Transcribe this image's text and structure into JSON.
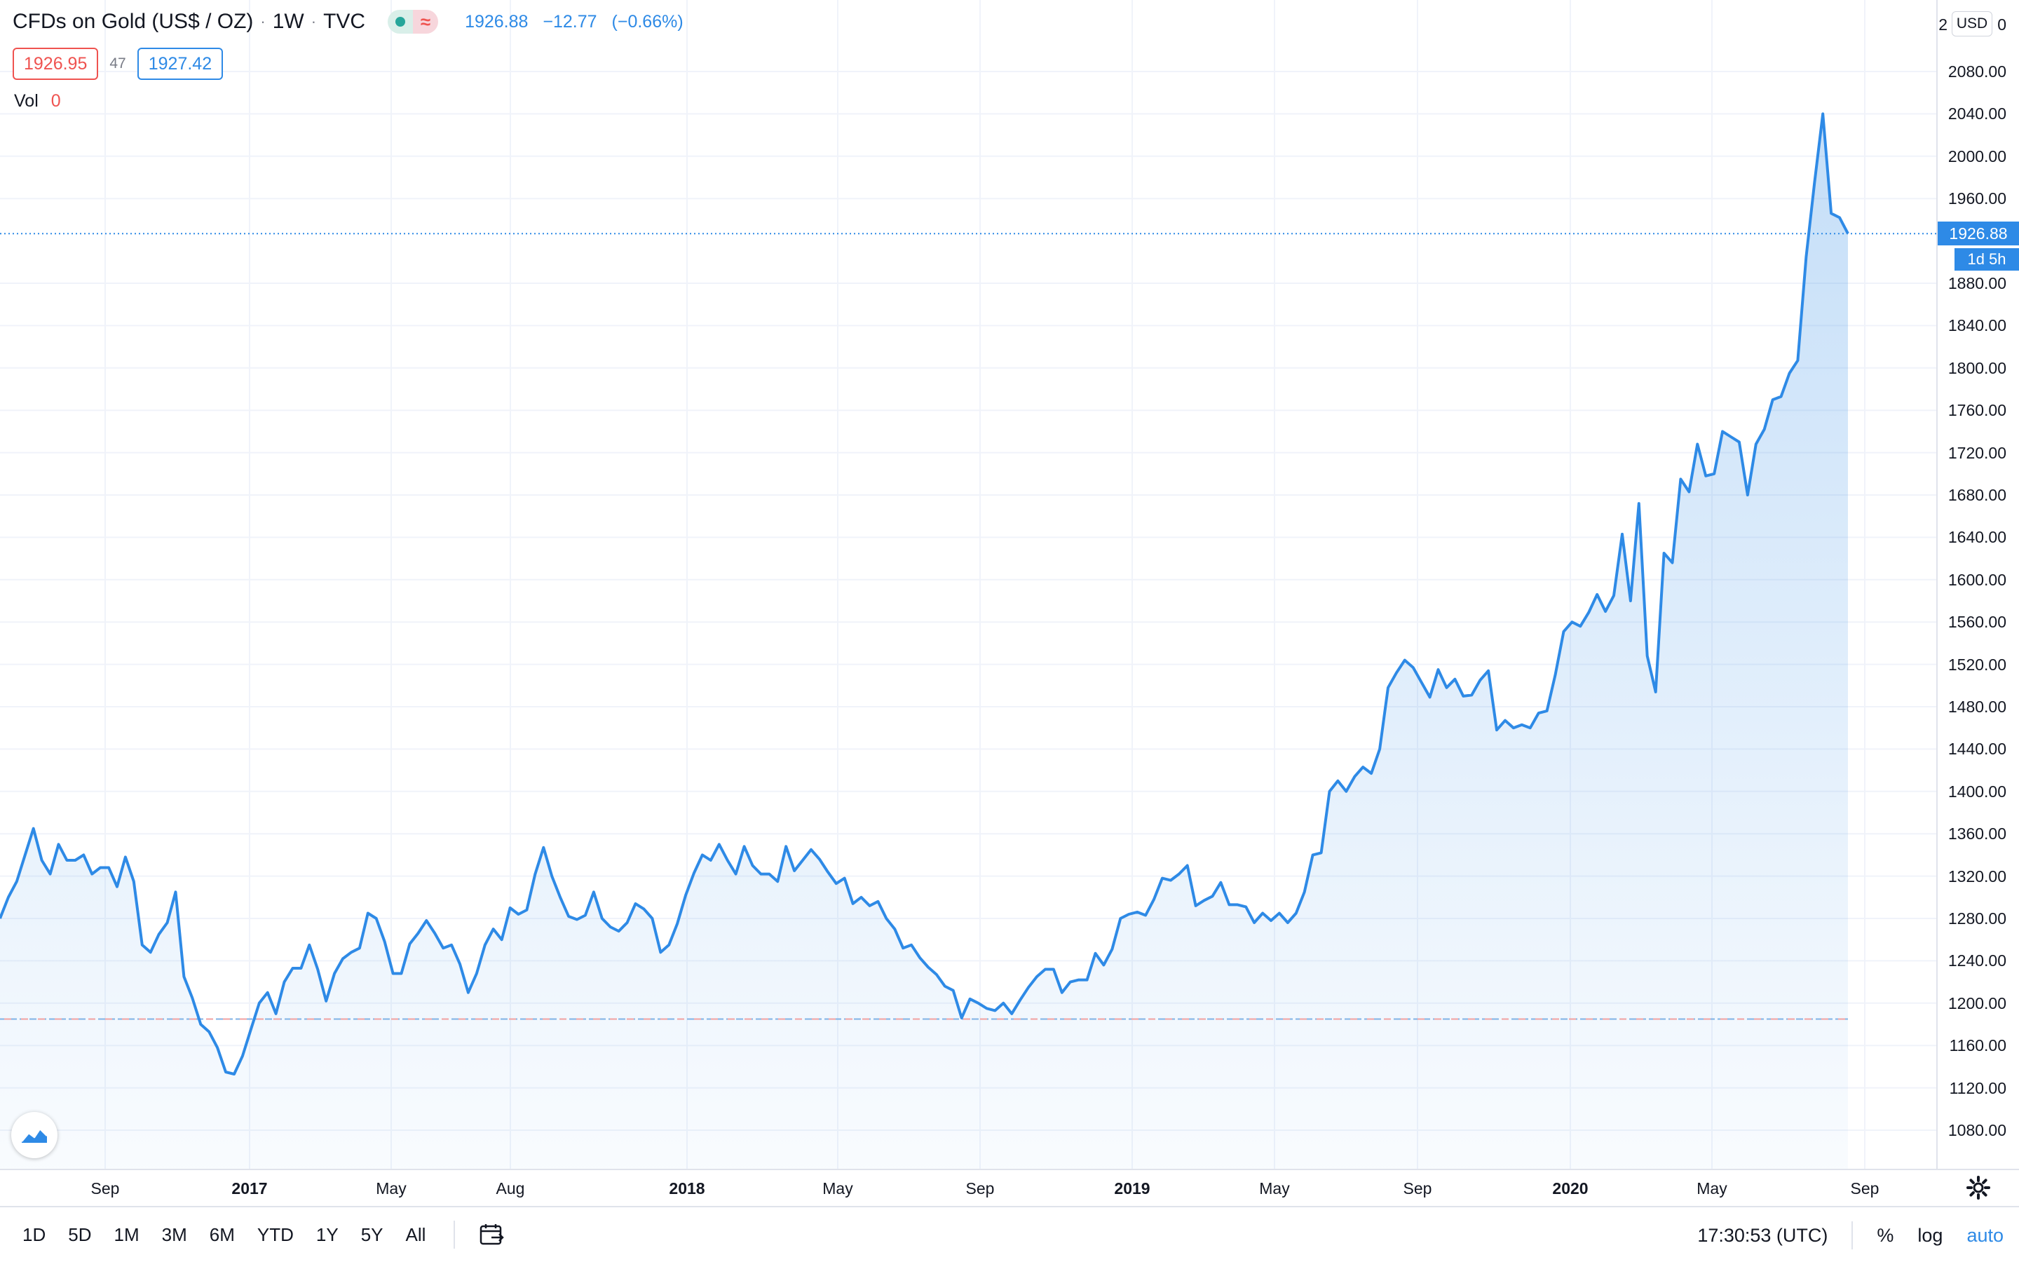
{
  "legend": {
    "symbol_name": "CFDs on Gold (US$ / OZ)",
    "interval": "1W",
    "exchange": "TVC",
    "last_price": "1926.88",
    "change": "−12.77",
    "change_pct": "(−0.66%)",
    "bid": "1926.95",
    "spread": "47",
    "ask": "1927.42",
    "vol_label": "Vol",
    "vol_value": "0"
  },
  "price_axis": {
    "currency": "USD",
    "labels": [
      "2080.00",
      "2040.00",
      "2000.00",
      "1960.00",
      "1880.00",
      "1840.00",
      "1800.00",
      "1760.00",
      "1720.00",
      "1680.00",
      "1640.00",
      "1600.00",
      "1560.00",
      "1520.00",
      "1480.00",
      "1440.00",
      "1400.00",
      "1360.00",
      "1320.00",
      "1280.00",
      "1240.00",
      "1200.00",
      "1160.00",
      "1120.00",
      "1080.00"
    ],
    "top_partial_left": "2",
    "top_partial_right": "0",
    "price_tag": "1926.88",
    "countdown": "1d 5h"
  },
  "time_axis": {
    "labels": [
      {
        "text": "Sep",
        "year": false
      },
      {
        "text": "2017",
        "year": true
      },
      {
        "text": "May",
        "year": false
      },
      {
        "text": "Aug",
        "year": false
      },
      {
        "text": "2018",
        "year": true
      },
      {
        "text": "May",
        "year": false
      },
      {
        "text": "Sep",
        "year": false
      },
      {
        "text": "2019",
        "year": true
      },
      {
        "text": "May",
        "year": false
      },
      {
        "text": "Sep",
        "year": false
      },
      {
        "text": "2020",
        "year": true
      },
      {
        "text": "May",
        "year": false
      },
      {
        "text": "Sep",
        "year": false
      }
    ]
  },
  "toolbar": {
    "ranges": [
      "1D",
      "5D",
      "1M",
      "3M",
      "6M",
      "YTD",
      "1Y",
      "5Y",
      "All"
    ],
    "clock": "17:30:53 (UTC)",
    "percent": "%",
    "log": "log",
    "auto": "auto"
  },
  "colors": {
    "line": "#2e8ae6",
    "down": "#ef5350",
    "grid": "#f0f3fa"
  },
  "chart_data": {
    "type": "area",
    "title": "CFDs on Gold (US$ / OZ)",
    "interval": "1W",
    "ylabel": "USD",
    "ylim": [
      1050,
      2110
    ],
    "x_start": "2016-07",
    "x_end": "2020-08",
    "last_value": 1926.88,
    "reference_line": 1185,
    "series": [
      {
        "name": "CFDs on Gold (US$ / OZ)",
        "values": [
          1280,
          1300,
          1315,
          1340,
          1365,
          1335,
          1322,
          1350,
          1335,
          1335,
          1340,
          1322,
          1328,
          1328,
          1310,
          1338,
          1315,
          1255,
          1248,
          1265,
          1276,
          1305,
          1225,
          1205,
          1180,
          1173,
          1158,
          1135,
          1133,
          1150,
          1175,
          1200,
          1210,
          1190,
          1220,
          1233,
          1233,
          1255,
          1232,
          1202,
          1228,
          1242,
          1248,
          1252,
          1285,
          1280,
          1258,
          1228,
          1228,
          1256,
          1266,
          1278,
          1266,
          1252,
          1255,
          1237,
          1210,
          1228,
          1255,
          1270,
          1260,
          1290,
          1284,
          1288,
          1322,
          1347,
          1320,
          1300,
          1282,
          1279,
          1283,
          1305,
          1280,
          1272,
          1268,
          1276,
          1294,
          1289,
          1280,
          1248,
          1255,
          1275,
          1302,
          1323,
          1340,
          1335,
          1350,
          1335,
          1322,
          1348,
          1330,
          1322,
          1322,
          1315,
          1348,
          1325,
          1335,
          1345,
          1336,
          1324,
          1313,
          1318,
          1294,
          1300,
          1292,
          1296,
          1280,
          1270,
          1252,
          1255,
          1243,
          1234,
          1227,
          1216,
          1212,
          1186,
          1204,
          1200,
          1195,
          1193,
          1200,
          1190,
          1203,
          1215,
          1225,
          1232,
          1232,
          1210,
          1220,
          1222,
          1222,
          1247,
          1236,
          1251,
          1280,
          1284,
          1286,
          1283,
          1298,
          1318,
          1316,
          1322,
          1330,
          1292,
          1297,
          1301,
          1314,
          1293,
          1293,
          1291,
          1276,
          1285,
          1278,
          1285,
          1276,
          1285,
          1305,
          1340,
          1342,
          1400,
          1410,
          1400,
          1414,
          1423,
          1417,
          1440,
          1498,
          1512,
          1524,
          1517,
          1503,
          1489,
          1515,
          1498,
          1506,
          1490,
          1491,
          1505,
          1514,
          1458,
          1467,
          1460,
          1463,
          1460,
          1474,
          1476,
          1510,
          1551,
          1560,
          1556,
          1569,
          1586,
          1570,
          1585,
          1643,
          1580,
          1672,
          1528,
          1494,
          1625,
          1616,
          1695,
          1683,
          1728,
          1698,
          1700,
          1740,
          1735,
          1730,
          1680,
          1728,
          1742,
          1770,
          1773,
          1795,
          1807,
          1905,
          1975,
          2040,
          1946,
          1942,
          1926.88
        ]
      }
    ]
  }
}
